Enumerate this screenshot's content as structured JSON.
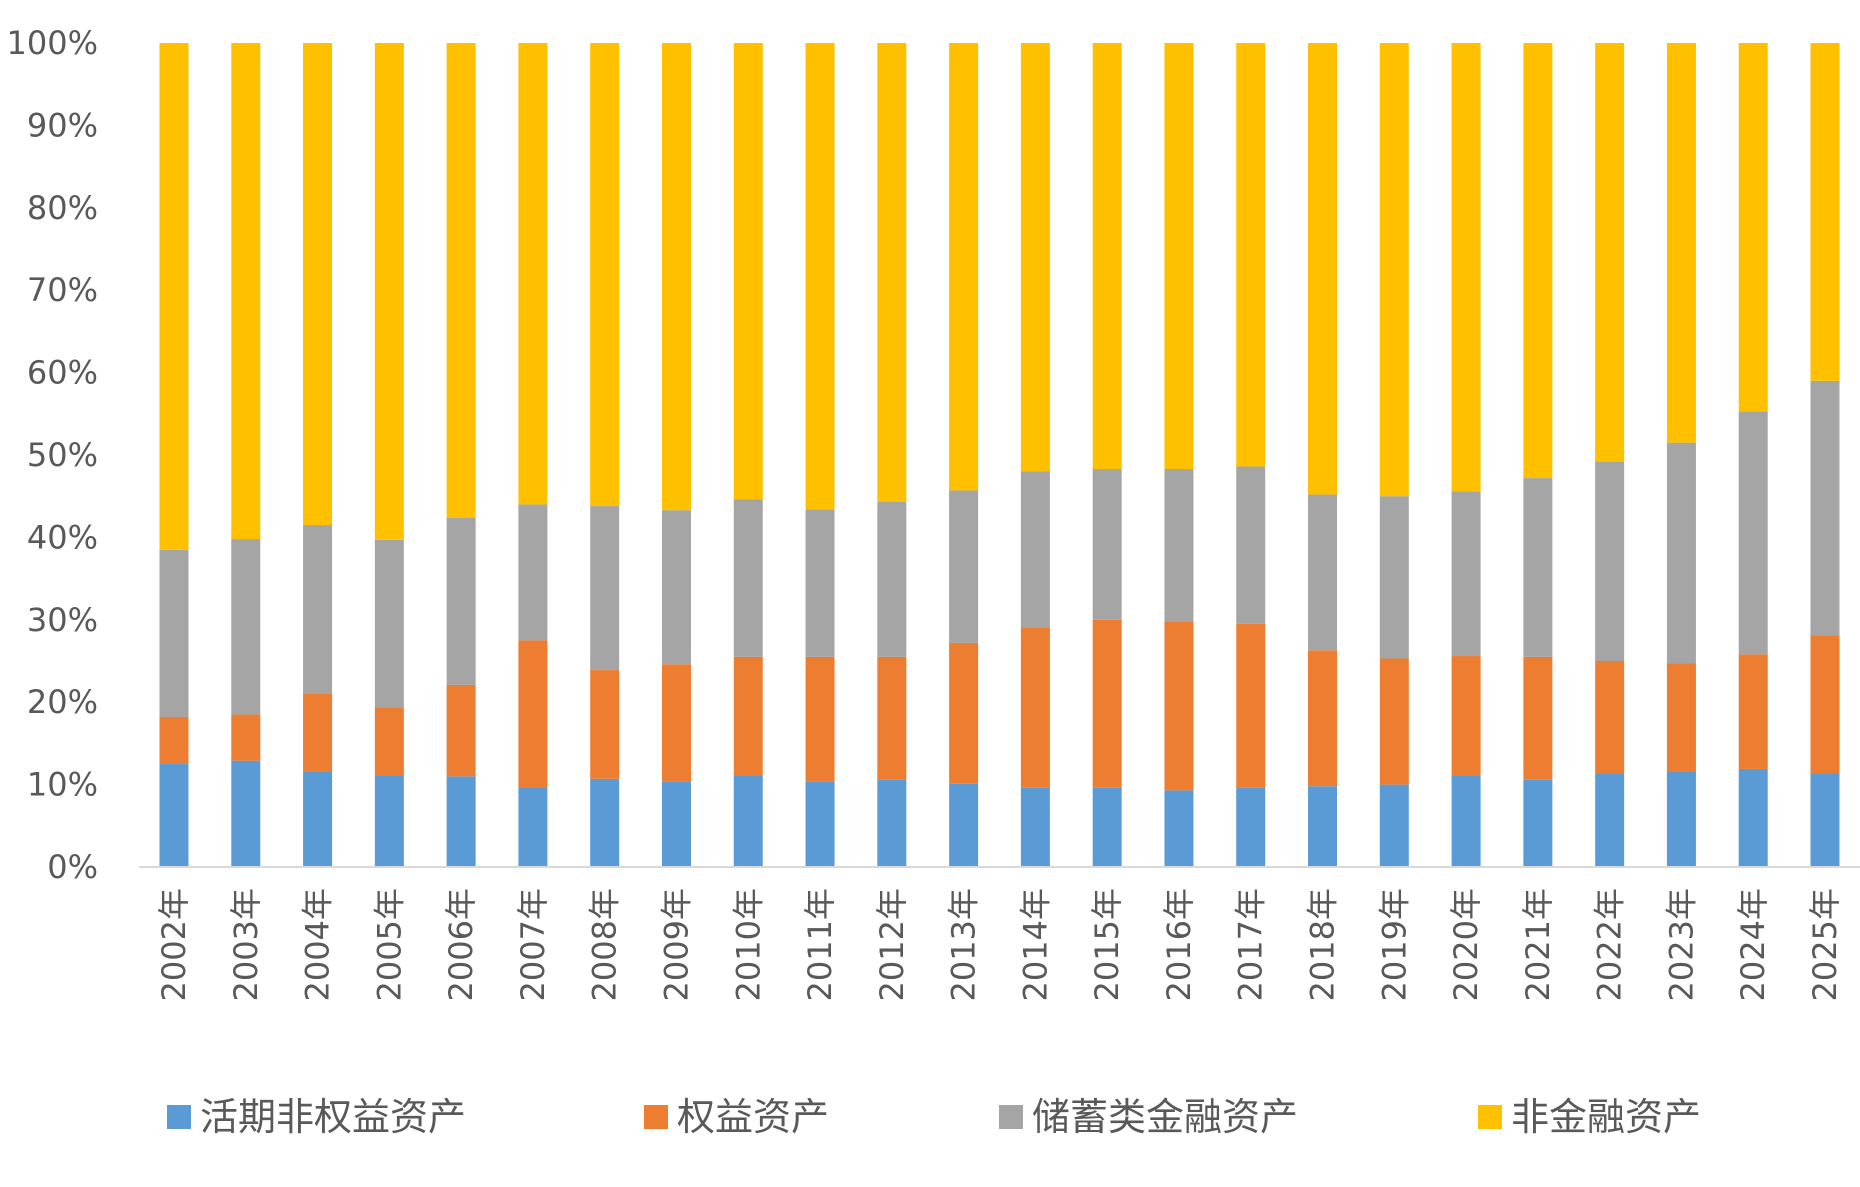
{
  "chart_data": {
    "type": "bar",
    "stacked": "percent",
    "title": "",
    "xlabel": "",
    "ylabel": "",
    "ylim": [
      0,
      100
    ],
    "y_ticks": [
      "0%",
      "10%",
      "20%",
      "30%",
      "40%",
      "50%",
      "60%",
      "70%",
      "80%",
      "90%",
      "100%"
    ],
    "grid": false,
    "legend_position": "bottom",
    "categories": [
      "2002年",
      "2003年",
      "2004年",
      "2005年",
      "2006年",
      "2007年",
      "2008年",
      "2009年",
      "2010年",
      "2011年",
      "2012年",
      "2013年",
      "2014年",
      "2015年",
      "2016年",
      "2017年",
      "2018年",
      "2019年",
      "2020年",
      "2021年",
      "2022年",
      "2023年",
      "2024年",
      "2025年"
    ],
    "series": [
      {
        "name": "活期非权益资产",
        "color": "#5B9BD5",
        "values": [
          12.6,
          12.9,
          11.6,
          11.1,
          11.0,
          9.7,
          10.7,
          10.4,
          11.1,
          10.4,
          10.6,
          10.1,
          9.6,
          9.6,
          9.3,
          9.6,
          9.8,
          10.0,
          11.1,
          10.6,
          11.4,
          11.6,
          11.9,
          11.4
        ]
      },
      {
        "name": "权益资产",
        "color": "#ED7D31",
        "values": [
          5.6,
          5.6,
          9.5,
          8.3,
          11.1,
          17.8,
          13.2,
          14.2,
          14.4,
          15.1,
          14.9,
          17.1,
          19.5,
          20.4,
          20.5,
          19.9,
          16.5,
          15.3,
          14.5,
          14.9,
          13.6,
          13.1,
          13.9,
          16.7
        ]
      },
      {
        "name": "储蓄类金融资产",
        "color": "#A5A5A5",
        "values": [
          20.3,
          21.3,
          20.4,
          20.3,
          20.3,
          16.5,
          19.9,
          18.7,
          19.1,
          17.9,
          18.8,
          18.5,
          18.9,
          18.3,
          18.5,
          19.1,
          18.9,
          19.7,
          20.0,
          21.7,
          24.2,
          26.8,
          29.5,
          30.9
        ]
      },
      {
        "name": "非金融资产",
        "color": "#FFC000",
        "values": [
          61.5,
          60.2,
          58.5,
          60.3,
          57.6,
          56.0,
          56.2,
          56.7,
          55.4,
          56.6,
          55.7,
          54.3,
          52.0,
          51.7,
          51.7,
          51.4,
          54.8,
          55.0,
          54.4,
          52.8,
          50.8,
          48.5,
          44.7,
          41.0
        ]
      }
    ]
  }
}
